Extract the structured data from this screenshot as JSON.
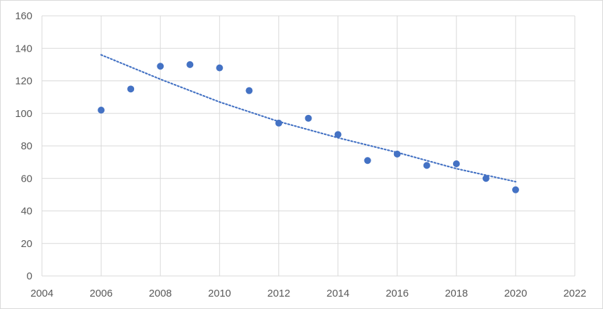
{
  "chart_data": {
    "type": "scatter",
    "title": "",
    "xlabel": "",
    "ylabel": "",
    "xlim": [
      2004,
      2022
    ],
    "ylim": [
      0,
      160
    ],
    "x_ticks": [
      2004,
      2006,
      2008,
      2010,
      2012,
      2014,
      2016,
      2018,
      2020,
      2022
    ],
    "y_ticks": [
      0,
      20,
      40,
      60,
      80,
      100,
      120,
      140,
      160
    ],
    "grid": true,
    "legend": "none",
    "series": [
      {
        "x": [
          2006,
          2007,
          2008,
          2009,
          2010,
          2011,
          2012,
          2013,
          2014,
          2015,
          2016,
          2017,
          2018,
          2019,
          2020
        ],
        "y": [
          102,
          115,
          129,
          130,
          128,
          114,
          94,
          97,
          87,
          71,
          75,
          68,
          69,
          60,
          53
        ],
        "color": "#4472c4"
      }
    ],
    "trendline": {
      "style": "dotted",
      "color": "#4472c4",
      "x": [
        2006,
        2008,
        2010,
        2012,
        2014,
        2016,
        2018,
        2020
      ],
      "y": [
        136,
        121,
        107,
        95,
        85,
        76,
        66,
        58
      ]
    }
  }
}
